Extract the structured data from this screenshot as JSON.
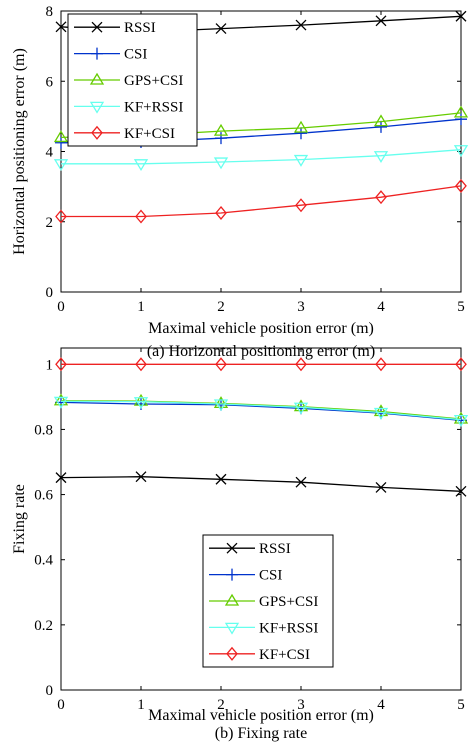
{
  "chart_data": [
    {
      "type": "line",
      "title": "",
      "caption": "(a) Horizontal positioning error (m)",
      "xlabel": "Maximal vehicle position error (m)",
      "ylabel": "Horizontal positioning error (m)",
      "xlim": [
        0,
        5
      ],
      "ylim": [
        0,
        8
      ],
      "xticks": [
        "0",
        "1",
        "2",
        "3",
        "4",
        "5"
      ],
      "yticks": [
        "0",
        "2",
        "4",
        "6",
        "8"
      ],
      "legend_position": "top-left",
      "grid": false,
      "x": [
        0,
        1,
        2,
        3,
        4,
        5
      ],
      "series": [
        {
          "name": "RSSI",
          "color": "#000000",
          "marker": "x",
          "values": [
            7.55,
            7.4,
            7.5,
            7.6,
            7.72,
            7.85
          ]
        },
        {
          "name": "CSI",
          "color": "#0033cc",
          "marker": "+",
          "values": [
            4.25,
            4.27,
            4.38,
            4.52,
            4.7,
            4.92
          ]
        },
        {
          "name": "GPS+CSI",
          "color": "#66cc00",
          "marker": "triangle-up",
          "values": [
            4.4,
            4.45,
            4.58,
            4.67,
            4.85,
            5.1
          ]
        },
        {
          "name": "KF+RSSI",
          "color": "#66ffee",
          "marker": "triangle-down",
          "values": [
            3.65,
            3.65,
            3.7,
            3.77,
            3.88,
            4.05
          ]
        },
        {
          "name": "KF+CSI",
          "color": "#ee2222",
          "marker": "diamond",
          "values": [
            2.15,
            2.15,
            2.25,
            2.47,
            2.7,
            3.02
          ]
        }
      ]
    },
    {
      "type": "line",
      "title": "",
      "caption": "(b) Fixing rate",
      "xlabel": "Maximal vehicle position error (m)",
      "ylabel": "Fixing rate",
      "xlim": [
        0,
        5
      ],
      "ylim": [
        0,
        1.05
      ],
      "xticks": [
        "0",
        "1",
        "2",
        "3",
        "4",
        "5"
      ],
      "yticks": [
        "0",
        "0.2",
        "0.4",
        "0.6",
        "0.8",
        "1"
      ],
      "legend_position": "center-right",
      "grid": false,
      "x": [
        0,
        1,
        2,
        3,
        4,
        5
      ],
      "series": [
        {
          "name": "RSSI",
          "color": "#000000",
          "marker": "x",
          "values": [
            0.652,
            0.655,
            0.647,
            0.638,
            0.622,
            0.61
          ]
        },
        {
          "name": "CSI",
          "color": "#0033cc",
          "marker": "+",
          "values": [
            0.883,
            0.878,
            0.876,
            0.865,
            0.85,
            0.828
          ]
        },
        {
          "name": "GPS+CSI",
          "color": "#66cc00",
          "marker": "triangle-up",
          "values": [
            0.888,
            0.887,
            0.88,
            0.87,
            0.855,
            0.832
          ]
        },
        {
          "name": "KF+RSSI",
          "color": "#66ffee",
          "marker": "triangle-down",
          "values": [
            0.886,
            0.885,
            0.878,
            0.868,
            0.852,
            0.83
          ]
        },
        {
          "name": "KF+CSI",
          "color": "#ee2222",
          "marker": "diamond",
          "values": [
            1.0,
            1.0,
            1.0,
            1.0,
            1.0,
            1.0
          ]
        }
      ]
    }
  ]
}
